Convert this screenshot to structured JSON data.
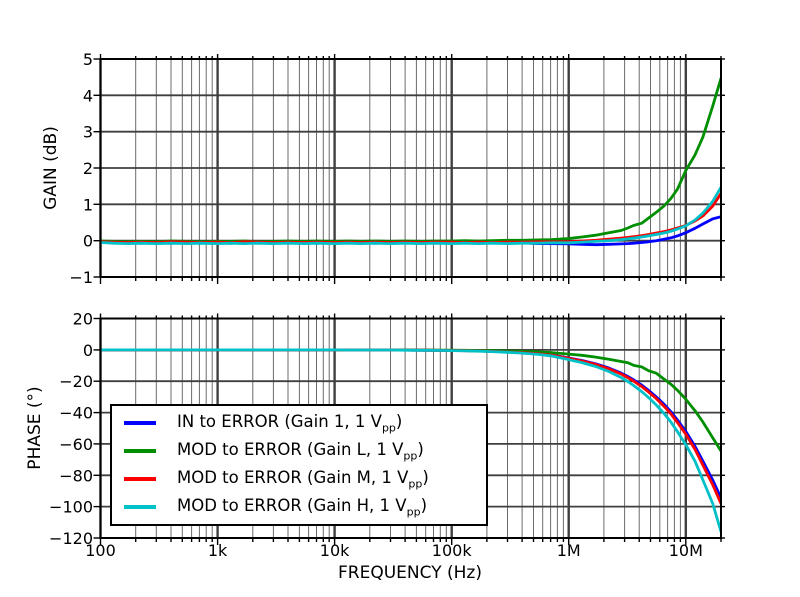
{
  "legend": {
    "entries": [
      {
        "color": "#0000ff",
        "pre": "IN to ERROR (Gain 1, 1 V",
        "sub": "pp",
        "post": ")"
      },
      {
        "color": "#008f00",
        "pre": "MOD to ERROR (Gain L, 1 V",
        "sub": "pp",
        "post": ")"
      },
      {
        "color": "#ff0000",
        "pre": "MOD to ERROR (Gain M, 1 V",
        "sub": "pp",
        "post": ")"
      },
      {
        "color": "#00c0c8",
        "pre": "MOD to ERROR (Gain H, 1 V",
        "sub": "pp",
        "post": ")"
      }
    ]
  },
  "chart_data": [
    {
      "type": "line",
      "title": "",
      "xlabel": "",
      "ylabel": "GAIN (dB)",
      "xscale": "log",
      "grid": true,
      "xlim": [
        100,
        20000000
      ],
      "ylim": [
        -1,
        5
      ],
      "xticks": {
        "values": [
          100,
          1000,
          10000,
          100000,
          1000000,
          10000000
        ],
        "labels": [
          "100",
          "1k",
          "10k",
          "100k",
          "1M",
          "10M"
        ]
      },
      "yticks": {
        "values": [
          5,
          4,
          3,
          2,
          1,
          0,
          -1
        ],
        "labels": [
          "5",
          "4",
          "3",
          "2",
          "1",
          "0",
          "−1"
        ]
      },
      "x": [
        100,
        130,
        170,
        220,
        300,
        400,
        550,
        700,
        1000,
        1300,
        1700,
        2200,
        3000,
        4000,
        5500,
        7000,
        10000,
        13000,
        17000,
        22000,
        30000,
        40000,
        55000,
        70000,
        100000,
        130000,
        170000,
        220000,
        300000,
        400000,
        550000,
        700000,
        1000000,
        1300000,
        1700000,
        2200000,
        2800000,
        3200000,
        3600000,
        4200000,
        4800000,
        5600000,
        6500000,
        7500000,
        8500000,
        10000000,
        12000000,
        14000000,
        17000000,
        20000000
      ],
      "series": [
        {
          "name": "IN to ERROR (Gain 1, 1 Vpp)",
          "color": "#0000ff",
          "values": [
            -0.02,
            -0.05,
            -0.06,
            -0.07,
            -0.06,
            -0.07,
            -0.05,
            -0.07,
            -0.06,
            -0.07,
            -0.05,
            -0.06,
            -0.07,
            -0.05,
            -0.06,
            -0.07,
            -0.05,
            -0.06,
            -0.05,
            -0.07,
            -0.06,
            -0.05,
            -0.06,
            -0.05,
            -0.06,
            -0.05,
            -0.07,
            -0.06,
            -0.07,
            -0.06,
            -0.08,
            -0.08,
            -0.09,
            -0.1,
            -0.11,
            -0.1,
            -0.09,
            -0.08,
            -0.07,
            -0.05,
            -0.03,
            0.0,
            0.04,
            0.08,
            0.13,
            0.22,
            0.34,
            0.46,
            0.6,
            0.66
          ]
        },
        {
          "name": "MOD to ERROR (Gain L, 1 Vpp)",
          "color": "#008f00",
          "values": [
            -0.01,
            -0.02,
            -0.03,
            -0.02,
            -0.03,
            -0.01,
            -0.02,
            -0.03,
            -0.02,
            -0.02,
            -0.01,
            -0.03,
            -0.02,
            -0.01,
            -0.02,
            -0.01,
            -0.02,
            -0.01,
            -0.02,
            -0.01,
            -0.02,
            -0.01,
            -0.02,
            -0.01,
            -0.01,
            0.0,
            -0.01,
            0.0,
            0.01,
            0.01,
            0.02,
            0.03,
            0.06,
            0.1,
            0.15,
            0.22,
            0.28,
            0.35,
            0.42,
            0.48,
            0.62,
            0.78,
            0.95,
            1.17,
            1.42,
            1.93,
            2.36,
            2.85,
            3.7,
            4.47
          ]
        },
        {
          "name": "MOD to ERROR (Gain M, 1 Vpp)",
          "color": "#ff0000",
          "values": [
            -0.03,
            -0.04,
            -0.05,
            -0.04,
            -0.05,
            -0.03,
            -0.04,
            -0.05,
            -0.04,
            -0.05,
            -0.03,
            -0.04,
            -0.05,
            -0.04,
            -0.05,
            -0.04,
            -0.05,
            -0.04,
            -0.05,
            -0.04,
            -0.05,
            -0.04,
            -0.05,
            -0.04,
            -0.04,
            -0.05,
            -0.04,
            -0.05,
            -0.04,
            -0.04,
            -0.03,
            -0.03,
            -0.03,
            -0.01,
            0.01,
            0.04,
            0.07,
            0.09,
            0.11,
            0.14,
            0.17,
            0.21,
            0.25,
            0.3,
            0.35,
            0.42,
            0.54,
            0.68,
            0.95,
            1.3
          ]
        },
        {
          "name": "MOD to ERROR (Gain H, 1 Vpp)",
          "color": "#00c0c8",
          "values": [
            -0.05,
            -0.07,
            -0.08,
            -0.07,
            -0.08,
            -0.07,
            -0.08,
            -0.07,
            -0.08,
            -0.07,
            -0.08,
            -0.07,
            -0.08,
            -0.07,
            -0.08,
            -0.07,
            -0.08,
            -0.07,
            -0.08,
            -0.07,
            -0.08,
            -0.07,
            -0.08,
            -0.07,
            -0.08,
            -0.07,
            -0.08,
            -0.07,
            -0.08,
            -0.07,
            -0.07,
            -0.06,
            -0.06,
            -0.04,
            -0.02,
            0.0,
            0.03,
            0.05,
            0.07,
            0.1,
            0.13,
            0.17,
            0.21,
            0.26,
            0.32,
            0.41,
            0.57,
            0.76,
            1.08,
            1.47
          ]
        }
      ]
    },
    {
      "type": "line",
      "title": "",
      "xlabel": "FREQUENCY (Hz)",
      "ylabel": "PHASE (°)",
      "xscale": "log",
      "grid": true,
      "legend_position": "lower left",
      "xlim": [
        100,
        20000000
      ],
      "ylim": [
        -120,
        20
      ],
      "xticks": {
        "values": [
          100,
          1000,
          10000,
          100000,
          1000000,
          10000000
        ],
        "labels": [
          "100",
          "1k",
          "10k",
          "100k",
          "1M",
          "10M"
        ]
      },
      "yticks": {
        "values": [
          20,
          0,
          -20,
          -40,
          -60,
          -80,
          -100,
          -120
        ],
        "labels": [
          "20",
          "0",
          "−20",
          "−40",
          "−60",
          "−80",
          "−100",
          "−120"
        ]
      },
      "x": [
        100,
        130,
        170,
        220,
        300,
        400,
        550,
        700,
        1000,
        1300,
        1700,
        2200,
        3000,
        4000,
        5500,
        7000,
        10000,
        13000,
        17000,
        22000,
        30000,
        40000,
        55000,
        70000,
        100000,
        130000,
        170000,
        220000,
        300000,
        400000,
        550000,
        700000,
        1000000,
        1300000,
        1700000,
        2200000,
        2800000,
        3200000,
        3600000,
        4200000,
        4800000,
        5600000,
        6500000,
        7500000,
        8500000,
        10000000,
        12000000,
        14000000,
        17000000,
        20000000
      ],
      "series": [
        {
          "name": "IN to ERROR (Gain 1, 1 Vpp)",
          "color": "#0000ff",
          "values": [
            0,
            0,
            0,
            0,
            0,
            0,
            0,
            0,
            0,
            0,
            0,
            0,
            0,
            0,
            0,
            0,
            -0.05,
            -0.05,
            -0.05,
            -0.1,
            -0.1,
            -0.15,
            -0.2,
            -0.3,
            -0.4,
            -0.5,
            -0.7,
            -0.9,
            -1.3,
            -1.7,
            -2.4,
            -3.1,
            -5.2,
            -6.8,
            -8.9,
            -11.6,
            -14.8,
            -17.0,
            -19.2,
            -22.5,
            -25.8,
            -30.0,
            -34.6,
            -39.6,
            -44.8,
            -52.0,
            -61.5,
            -71.0,
            -83.0,
            -94.5
          ]
        },
        {
          "name": "MOD to ERROR (Gain L, 1 Vpp)",
          "color": "#008f00",
          "values": [
            0,
            0,
            0,
            0,
            0,
            0,
            0,
            0,
            0,
            0,
            0,
            0,
            0,
            0,
            0,
            0,
            0,
            0,
            -0.05,
            -0.05,
            0,
            -0.05,
            -0.1,
            -0.15,
            -0.2,
            -0.3,
            -0.4,
            -0.5,
            -0.7,
            -0.95,
            -1.3,
            -1.7,
            -2.7,
            -3.5,
            -4.6,
            -6.0,
            -7.4,
            -8.2,
            -9.9,
            -10.9,
            -13.3,
            -14.9,
            -18.6,
            -22.0,
            -25.8,
            -31.5,
            -38.8,
            -46.0,
            -56.0,
            -64.5
          ]
        },
        {
          "name": "MOD to ERROR (Gain M, 1 Vpp)",
          "color": "#ff0000",
          "values": [
            0,
            0,
            0,
            0,
            0,
            0,
            0,
            0,
            0,
            0,
            0,
            0,
            0,
            0,
            0,
            0,
            -0.05,
            -0.05,
            -0.1,
            -0.1,
            -0.1,
            -0.15,
            -0.25,
            -0.3,
            -0.4,
            -0.55,
            -0.75,
            -1.0,
            -1.35,
            -1.8,
            -2.5,
            -3.3,
            -5.4,
            -7.1,
            -9.3,
            -12.1,
            -15.4,
            -17.7,
            -20.0,
            -23.4,
            -26.8,
            -31.1,
            -35.9,
            -41.0,
            -46.4,
            -53.8,
            -63.5,
            -73.5,
            -86.0,
            -98.0
          ]
        },
        {
          "name": "MOD to ERROR (Gain H, 1 Vpp)",
          "color": "#00c0c8",
          "values": [
            0,
            0,
            0,
            0,
            0,
            0,
            0,
            0,
            0,
            0,
            0,
            0,
            0,
            0,
            0,
            0,
            -0.05,
            -0.1,
            -0.1,
            -0.1,
            -0.1,
            -0.2,
            -0.3,
            -0.35,
            -0.5,
            -0.65,
            -0.85,
            -1.1,
            -1.55,
            -2.1,
            -2.9,
            -3.8,
            -6.2,
            -8.1,
            -10.6,
            -13.8,
            -17.6,
            -20.2,
            -22.8,
            -26.6,
            -30.4,
            -35.2,
            -40.5,
            -46.2,
            -52.2,
            -60.5,
            -71.0,
            -83.0,
            -98.0,
            -116.0
          ]
        }
      ]
    }
  ]
}
